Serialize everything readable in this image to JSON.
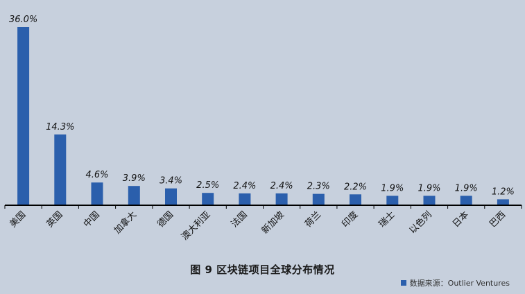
{
  "caption": "图 9 区块链项目全球分布情况",
  "source": {
    "text": "数据来源：Outlier Ventures"
  },
  "colors": {
    "bar": "#2b5fac",
    "background": "#c7d0dd",
    "axis": "#000000"
  },
  "chart_data": {
    "type": "bar",
    "categories": [
      "美国",
      "英国",
      "中国",
      "加拿大",
      "德国",
      "澳大利亚",
      "法国",
      "新加坡",
      "荷兰",
      "印度",
      "瑞士",
      "以色列",
      "日本",
      "巴西"
    ],
    "values": [
      36.0,
      14.3,
      4.6,
      3.9,
      3.4,
      2.5,
      2.4,
      2.4,
      2.3,
      2.2,
      1.9,
      1.9,
      1.9,
      1.2
    ],
    "data_labels": [
      "36.0%",
      "14.3%",
      "4.6%",
      "3.9%",
      "3.4%",
      "2.5%",
      "2.4%",
      "2.4%",
      "2.3%",
      "2.2%",
      "1.9%",
      "1.9%",
      "1.9%",
      "1.2%"
    ],
    "unit": "%",
    "ylim": [
      0,
      36.0
    ],
    "grid": false,
    "legend": "none"
  }
}
